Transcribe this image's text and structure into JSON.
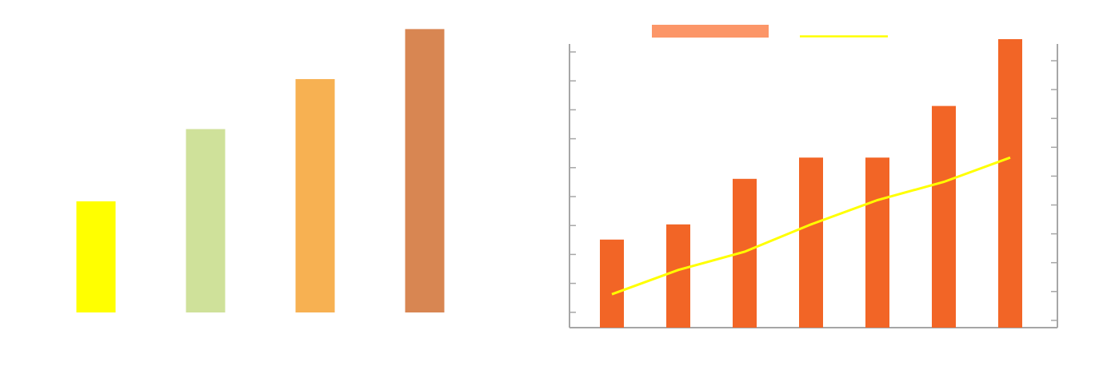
{
  "chart_data": [
    {
      "type": "bar",
      "categories": [
        "",
        "",
        "",
        ""
      ],
      "values": [
        40,
        66,
        84,
        102
      ],
      "colors": [
        "#FFFF00",
        "#CFE19A",
        "#F7B152",
        "#D88652"
      ],
      "title": "",
      "xlabel": "",
      "ylabel": "",
      "ylim": [
        0,
        107
      ],
      "grid": false
    },
    {
      "type": "bar+line",
      "categories": [
        "",
        "",
        "",
        "",
        "",
        "",
        ""
      ],
      "bar_series": {
        "values": [
          2.9,
          3.4,
          4.9,
          5.6,
          5.6,
          7.3,
          9.5
        ],
        "color": "#F26526"
      },
      "line_series": {
        "values": [
          1.1,
          1.9,
          2.5,
          3.4,
          4.2,
          4.8,
          5.6
        ],
        "color": "#FFFF00"
      },
      "legend": {
        "position": "top",
        "swatch_colors": [
          "#FC9668",
          "#FFFF00"
        ]
      },
      "title": "",
      "xlabel": "",
      "ylabel": "",
      "ylim": [
        0,
        10
      ],
      "left_tick_count": 10,
      "right_tick_count": 10,
      "grid": false
    }
  ]
}
